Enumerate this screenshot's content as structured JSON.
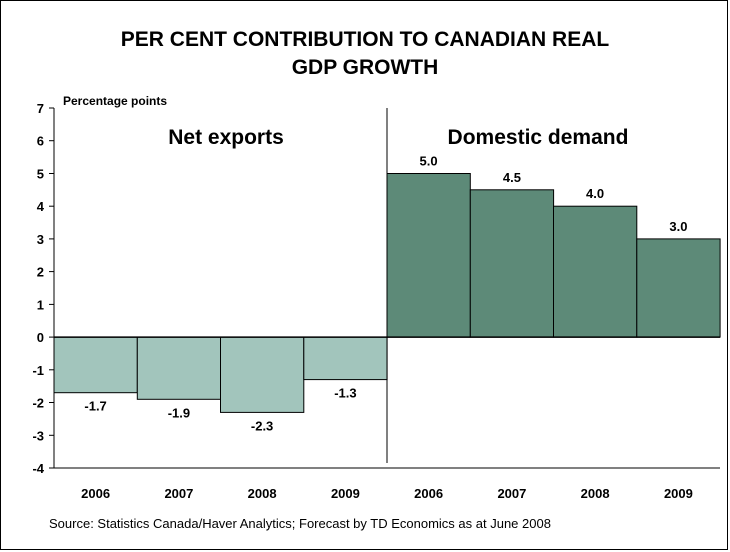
{
  "chart_data": {
    "type": "bar",
    "title": [
      "PER CENT CONTRIBUTION TO CANADIAN REAL",
      "GDP GROWTH"
    ],
    "ylabel": "Percentage points",
    "ylim": [
      -4,
      7
    ],
    "yticks": [
      -4,
      -3,
      -2,
      -1,
      0,
      1,
      2,
      3,
      4,
      5,
      6,
      7
    ],
    "categories": [
      "2006",
      "2007",
      "2008",
      "2009",
      "2006",
      "2007",
      "2008",
      "2009"
    ],
    "groups": [
      {
        "name": "Net exports",
        "color": "#a2c5bc",
        "values": [
          -1.7,
          -1.9,
          -2.3,
          -1.3
        ],
        "labels": [
          "-1.7",
          "-1.9",
          "-2.3",
          "-1.3"
        ]
      },
      {
        "name": "Domestic demand",
        "color": "#5d8a78",
        "values": [
          5.0,
          4.5,
          4.0,
          3.0
        ],
        "labels": [
          "5.0",
          "4.5",
          "4.0",
          "3.0"
        ]
      }
    ],
    "grid": false,
    "source": "Source: Statistics Canada/Haver Analytics; Forecast by TD Economics as at June 2008"
  }
}
